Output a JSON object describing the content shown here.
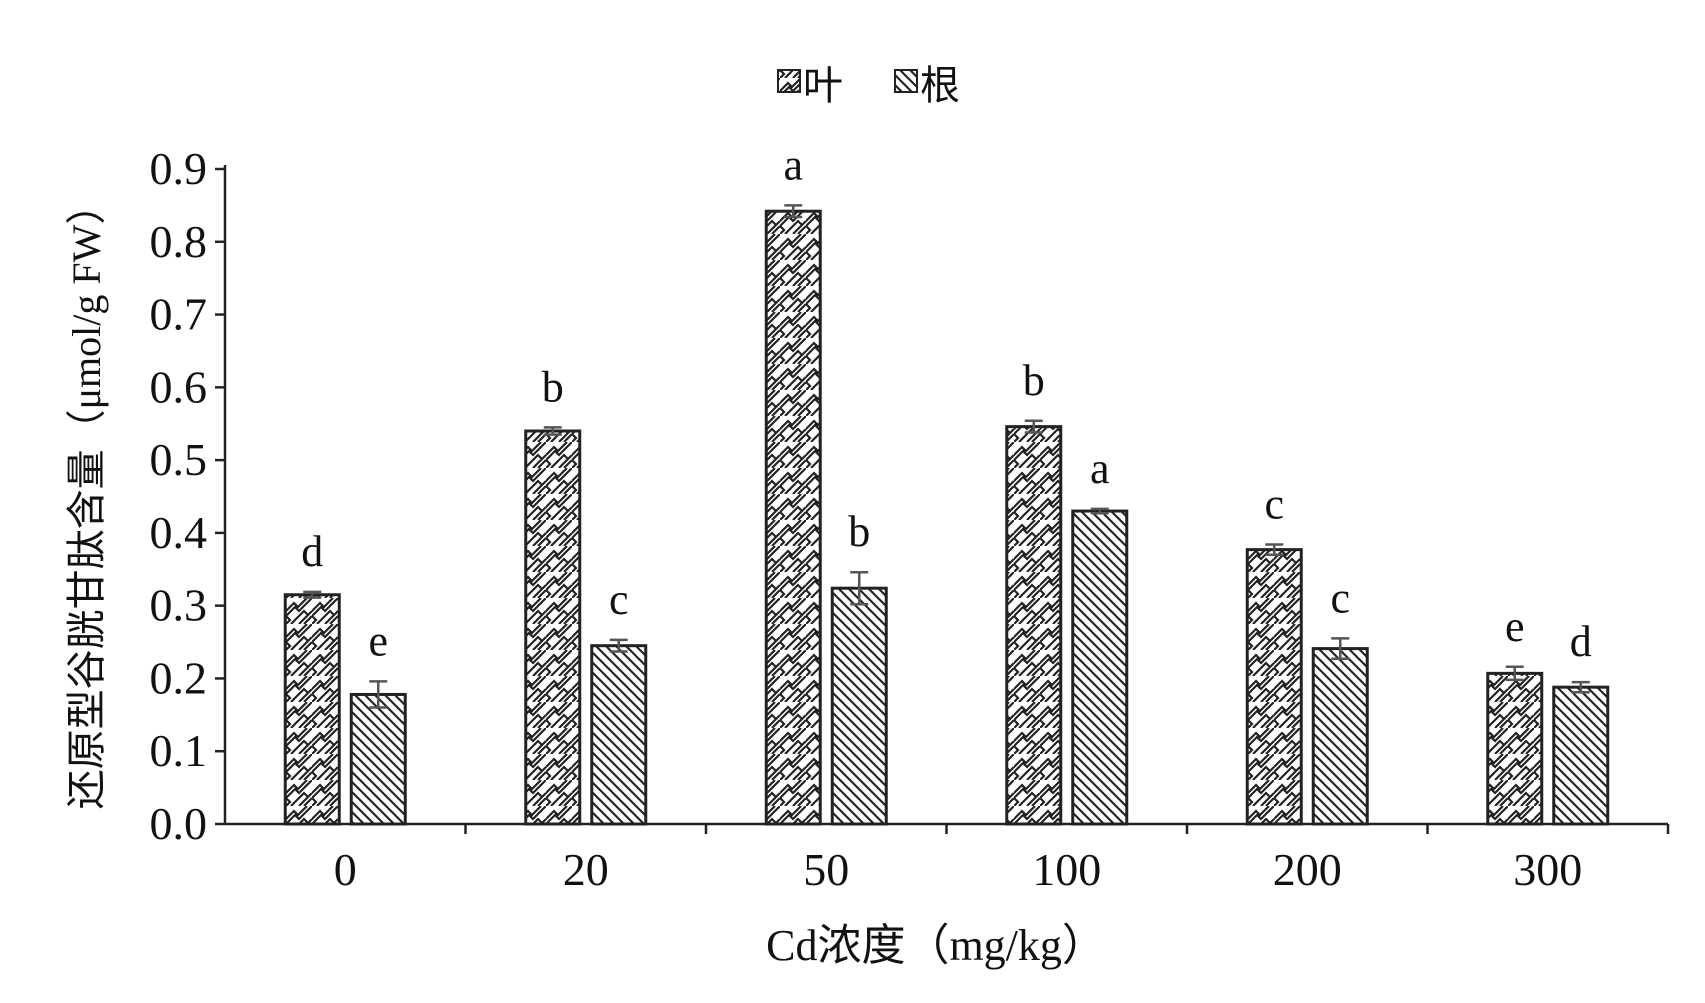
{
  "chart_data": {
    "type": "bar",
    "xlabel": "Cd浓度（mg/kg）",
    "ylabel": "还原型谷胱甘肽含量（μmol/g FW）",
    "ylim": [
      0.0,
      0.9
    ],
    "yticks": [
      "0.0",
      "0.1",
      "0.2",
      "0.3",
      "0.4",
      "0.5",
      "0.6",
      "0.7",
      "0.8",
      "0.9"
    ],
    "categories": [
      "0",
      "20",
      "50",
      "100",
      "200",
      "300"
    ],
    "legend_position": "top-center",
    "series": [
      {
        "name": "叶",
        "pattern": "zigzag-hatch",
        "values": [
          0.315,
          0.54,
          0.842,
          0.546,
          0.377,
          0.207
        ],
        "errors": [
          0.004,
          0.005,
          0.008,
          0.008,
          0.007,
          0.009
        ],
        "letters": [
          "d",
          "b",
          "a",
          "b",
          "c",
          "e"
        ]
      },
      {
        "name": "根",
        "pattern": "diagonal-hatch",
        "values": [
          0.178,
          0.245,
          0.324,
          0.43,
          0.241,
          0.188
        ],
        "errors": [
          0.018,
          0.008,
          0.022,
          0.003,
          0.014,
          0.007
        ],
        "letters": [
          "e",
          "c",
          "b",
          "a",
          "c",
          "d"
        ]
      }
    ],
    "colors": {
      "bar_stroke": "#222222",
      "error_bar": "#555555",
      "axis": "#222222"
    }
  }
}
